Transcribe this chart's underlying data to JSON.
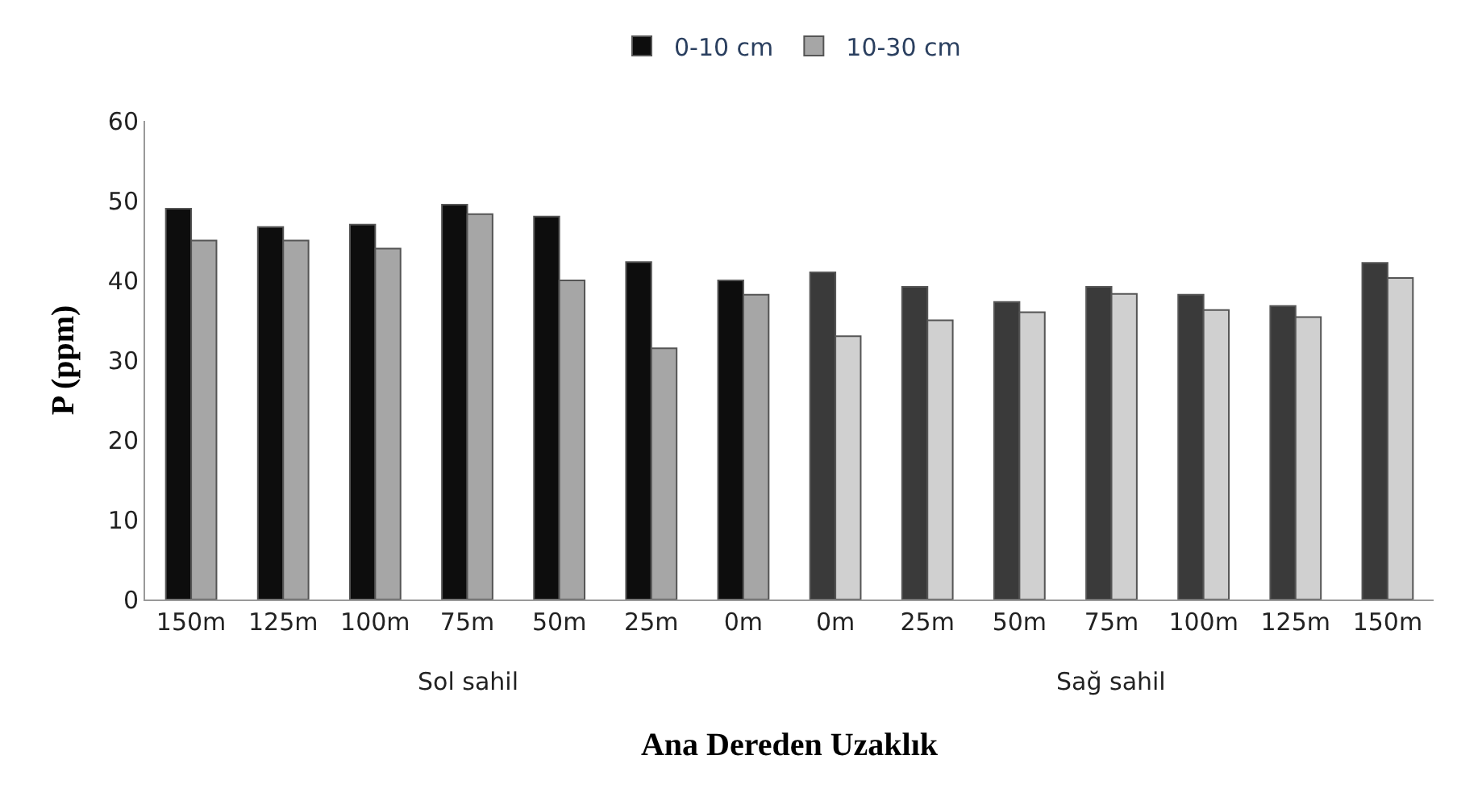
{
  "chart_data": {
    "type": "bar",
    "xlabel": "Ana Dereden Uzaklık",
    "ylabel": "P (ppm)",
    "categories": [
      "150m",
      "125m",
      "100m",
      "75m",
      "50m",
      "25m",
      "0m",
      "0m",
      "25m",
      "50m",
      "75m",
      "100m",
      "125m",
      "150m"
    ],
    "annotations": [
      "Sol sahil",
      "Sağ sahil"
    ],
    "series": [
      {
        "name": "0-10 cm",
        "colors": [
          "#0d0d0d",
          "#0d0d0d",
          "#0d0d0d",
          "#0d0d0d",
          "#0d0d0d",
          "#0d0d0d",
          "#0d0d0d",
          "#3a3a3a",
          "#3a3a3a",
          "#3a3a3a",
          "#3a3a3a",
          "#3a3a3a",
          "#3a3a3a",
          "#3a3a3a"
        ],
        "values": [
          49,
          46.7,
          47,
          49.5,
          48,
          42.3,
          40,
          41,
          39.2,
          37.3,
          39.2,
          38.2,
          36.8,
          42.2
        ]
      },
      {
        "name": "10-30 cm",
        "colors": [
          "#a6a6a6",
          "#a6a6a6",
          "#a6a6a6",
          "#a6a6a6",
          "#a6a6a6",
          "#a6a6a6",
          "#a6a6a6",
          "#d0d0d0",
          "#d0d0d0",
          "#d0d0d0",
          "#d0d0d0",
          "#d0d0d0",
          "#d0d0d0",
          "#d0d0d0"
        ],
        "values": [
          45,
          45,
          44,
          48.3,
          40,
          31.5,
          38.2,
          33,
          35,
          36,
          38.3,
          36.3,
          35.4,
          40.3
        ]
      }
    ],
    "ylim": [
      0,
      60
    ],
    "yticks": [
      0,
      10,
      20,
      30,
      40,
      50,
      60
    ],
    "legend": "top"
  }
}
